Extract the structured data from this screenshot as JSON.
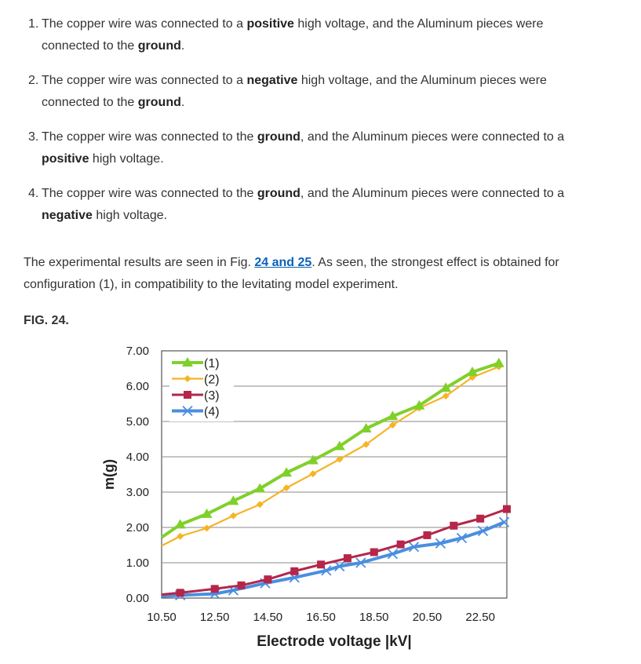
{
  "list": [
    {
      "num": "1.",
      "parts": [
        {
          "t": "The copper wire was connected to a ",
          "b": false
        },
        {
          "t": "positive",
          "b": true
        },
        {
          "t": " high voltage, and the Aluminum pieces were connected to the ",
          "b": false
        },
        {
          "t": "ground",
          "b": true
        },
        {
          "t": ".",
          "b": false
        }
      ]
    },
    {
      "num": "2.",
      "parts": [
        {
          "t": "The copper wire was connected to a ",
          "b": false
        },
        {
          "t": "negative",
          "b": true
        },
        {
          "t": " high voltage, and the Aluminum pieces were connected to the ",
          "b": false
        },
        {
          "t": "ground",
          "b": true
        },
        {
          "t": ".",
          "b": false
        }
      ]
    },
    {
      "num": "3.",
      "parts": [
        {
          "t": "The copper wire was connected to the ",
          "b": false
        },
        {
          "t": "ground",
          "b": true
        },
        {
          "t": ", and the Aluminum pieces were connected to a ",
          "b": false
        },
        {
          "t": "positive",
          "b": true
        },
        {
          "t": " high voltage.",
          "b": false
        }
      ]
    },
    {
      "num": "4.",
      "parts": [
        {
          "t": "The copper wire was connected to the ",
          "b": false
        },
        {
          "t": "ground",
          "b": true
        },
        {
          "t": ", and the Aluminum pieces were connected to a ",
          "b": false
        },
        {
          "t": "negative",
          "b": true
        },
        {
          "t": " high voltage.",
          "b": false
        }
      ]
    }
  ],
  "paragraph": {
    "before": "The experimental results are seen in Fig. ",
    "link": "24 and 25",
    "after": ". As seen, the strongest effect is obtained for configuration (1), in compatibility to the levitating model experiment."
  },
  "figure_label": "FIG. 24.",
  "colors": {
    "text": "#333333",
    "link": "#0b62b9"
  },
  "chart_data": {
    "type": "line",
    "title": "",
    "xlabel": "Electrode voltage |kV|",
    "ylabel": "m(g)",
    "xlim": [
      10.5,
      23.5
    ],
    "ylim": [
      0,
      7
    ],
    "x_ticks": [
      "10.50",
      "12.50",
      "14.50",
      "16.50",
      "18.50",
      "20.50",
      "22.50"
    ],
    "y_ticks": [
      "0.00",
      "1.00",
      "2.00",
      "3.00",
      "4.00",
      "5.00",
      "6.00",
      "7.00"
    ],
    "grid": "horizontal",
    "legend_position": "top-left",
    "series": [
      {
        "name": "(1)",
        "color": "#80d02a",
        "marker": "triangle",
        "x": [
          10.5,
          11.2,
          12.2,
          13.2,
          14.2,
          15.2,
          16.2,
          17.2,
          18.2,
          19.2,
          20.2,
          21.2,
          22.2,
          23.2
        ],
        "y": [
          1.72,
          2.08,
          2.38,
          2.75,
          3.1,
          3.55,
          3.9,
          4.3,
          4.8,
          5.15,
          5.45,
          5.95,
          6.4,
          6.65
        ]
      },
      {
        "name": "(2)",
        "color": "#f5b426",
        "marker": "diamond",
        "x": [
          10.5,
          11.2,
          12.2,
          13.2,
          14.2,
          15.2,
          16.2,
          17.2,
          18.2,
          19.2,
          20.2,
          21.2,
          22.2,
          23.2
        ],
        "y": [
          1.48,
          1.75,
          1.98,
          2.33,
          2.65,
          3.12,
          3.52,
          3.93,
          4.35,
          4.9,
          5.38,
          5.72,
          6.25,
          6.55
        ]
      },
      {
        "name": "(3)",
        "color": "#b5264a",
        "marker": "square",
        "x": [
          10.5,
          11.2,
          12.5,
          13.5,
          14.5,
          15.5,
          16.5,
          17.5,
          18.5,
          19.5,
          20.5,
          21.5,
          22.5,
          23.5
        ],
        "y": [
          0.1,
          0.15,
          0.26,
          0.36,
          0.53,
          0.76,
          0.95,
          1.13,
          1.3,
          1.52,
          1.78,
          2.05,
          2.25,
          2.52
        ]
      },
      {
        "name": "(4)",
        "color": "#4a8ee0",
        "marker": "x",
        "x": [
          10.5,
          11.2,
          12.5,
          13.2,
          14.4,
          15.5,
          16.7,
          17.2,
          18.0,
          19.2,
          20.0,
          21.0,
          21.8,
          22.6,
          23.4
        ],
        "y": [
          0.05,
          0.08,
          0.12,
          0.22,
          0.42,
          0.58,
          0.78,
          0.9,
          1.0,
          1.25,
          1.45,
          1.55,
          1.7,
          1.9,
          2.15
        ]
      }
    ]
  }
}
